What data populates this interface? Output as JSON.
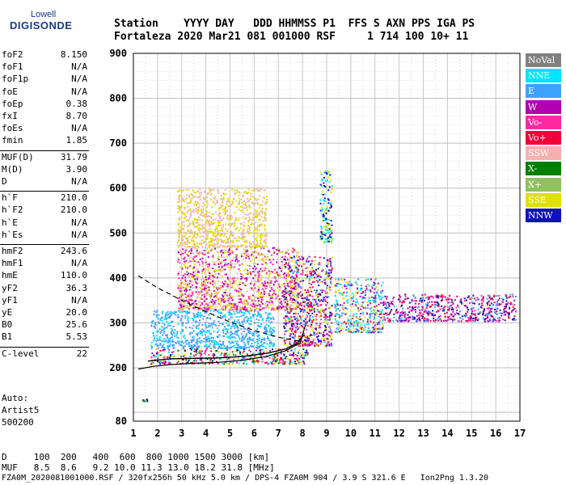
{
  "logo": {
    "line1": "Lowell",
    "line2": "DIGISONDE"
  },
  "header": {
    "row1": "Station    YYYY DAY   DDD HHMMSS P1  FFS S AXN PPS IGA PS",
    "row2": "Fortaleza 2020 Mar21 081 001000 RSF     1 714 100 10+ 11"
  },
  "params": [
    {
      "k": "foF2",
      "v": "8.150"
    },
    {
      "k": "foF1",
      "v": "N/A"
    },
    {
      "k": "foF1p",
      "v": "N/A"
    },
    {
      "k": "foE",
      "v": "N/A"
    },
    {
      "k": "foEp",
      "v": "0.38"
    },
    {
      "k": "fxI",
      "v": "8.70"
    },
    {
      "k": "foEs",
      "v": "N/A"
    },
    {
      "k": "fmin",
      "v": "1.85"
    },
    {
      "k": "MUF(D)",
      "v": "31.79"
    },
    {
      "k": "M(D)",
      "v": "3.90"
    },
    {
      "k": "D",
      "v": "N/A"
    },
    {
      "k": "h`F",
      "v": "210.0"
    },
    {
      "k": "h`F2",
      "v": "210.0"
    },
    {
      "k": "h`E",
      "v": "N/A"
    },
    {
      "k": "h`Es",
      "v": "N/A"
    },
    {
      "k": "hmF2",
      "v": "243.6"
    },
    {
      "k": "hmF1",
      "v": "N/A"
    },
    {
      "k": "hmE",
      "v": "110.0"
    },
    {
      "k": "yF2",
      "v": "36.3"
    },
    {
      "k": "yF1",
      "v": "N/A"
    },
    {
      "k": "yE",
      "v": "20.0"
    },
    {
      "k": "B0",
      "v": "25.6"
    },
    {
      "k": "B1",
      "v": "5.53"
    },
    {
      "k": "C-level",
      "v": "22"
    }
  ],
  "autoscale": {
    "line1": "Auto:",
    "line2": "Artist5",
    "line3": "500200"
  },
  "footer": {
    "row1": "D     100  200   400  600  800 1000 1500 3000 [km]",
    "row2": "MUF   8.5  8.6   9.2 10.0 11.3 13.0 18.2 31.8 [MHz]",
    "row3": "FZA0M_2020081001000.RSF / 320fx256h 50 kHz 5.0 km / DPS-4 FZA0M 904 / 3.9 S 321.6 E   Ion2Png 1.3.20"
  },
  "legend": [
    {
      "label": "NoVal",
      "color": "#808080"
    },
    {
      "label": "NNE",
      "color": "#00e5ff"
    },
    {
      "label": "E",
      "color": "#3ea0ff"
    },
    {
      "label": "W",
      "color": "#b000b0"
    },
    {
      "label": "Vo-",
      "color": "#ff2aa0"
    },
    {
      "label": "Vo+",
      "color": "#f00038"
    },
    {
      "label": "SSW",
      "color": "#f5b0b0"
    },
    {
      "label": "X-",
      "color": "#008000"
    },
    {
      "label": "X+",
      "color": "#90c060"
    },
    {
      "label": "SSE",
      "color": "#e0e000"
    },
    {
      "label": "NNW",
      "color": "#1010c0"
    }
  ],
  "chart_data": {
    "type": "scatter",
    "xlabel": "",
    "ylabel": "",
    "xlim": [
      1,
      17
    ],
    "ylim": [
      80,
      900
    ],
    "xticks": [
      "1",
      "2",
      "3",
      "4",
      "5",
      "6",
      "7",
      "8",
      "9",
      "10",
      "11",
      "12",
      "13",
      "14",
      "15",
      "16",
      "17"
    ],
    "yticks": [
      "80",
      "200",
      "300",
      "400",
      "500",
      "600",
      "700",
      "800",
      "900"
    ],
    "grid": true,
    "profile_curve": {
      "x": [
        1.2,
        1.8,
        2.5,
        3.5,
        4.5,
        5.5,
        6.5,
        7.3,
        7.9,
        8.15
      ],
      "y": [
        197,
        203,
        207,
        210,
        212,
        217,
        225,
        238,
        255,
        300
      ]
    },
    "virtual_height_curve": {
      "x": [
        1.6,
        2.5,
        3.5,
        4.5,
        5.5,
        6.5,
        7.3,
        7.8,
        8.0
      ],
      "y": [
        215,
        220,
        221,
        222,
        225,
        232,
        242,
        255,
        270
      ]
    },
    "dashed_curve": {
      "x": [
        1.2,
        2,
        3,
        4,
        5,
        6,
        7,
        8
      ],
      "y": [
        405,
        378,
        350,
        325,
        302,
        283,
        268,
        258
      ]
    },
    "echo_regions": [
      {
        "x": [
          1.7,
          8.2
        ],
        "y": [
          210,
          245
        ],
        "colors": [
          "#f00038",
          "#ff2aa0",
          "#b000b0",
          "#e0e000",
          "#008000",
          "#1010c0",
          "#00e5ff"
        ]
      },
      {
        "x": [
          1.7,
          6.8
        ],
        "y": [
          245,
          330
        ],
        "colors": [
          "#3ea0ff",
          "#00e5ff",
          "#3ea0ff"
        ]
      },
      {
        "x": [
          2.8,
          7.8
        ],
        "y": [
          330,
          470
        ],
        "colors": [
          "#b000b0",
          "#ff2aa0",
          "#f5b0b0",
          "#e0e000"
        ]
      },
      {
        "x": [
          2.8,
          6.5
        ],
        "y": [
          470,
          600
        ],
        "colors": [
          "#e0e000",
          "#f5b0b0"
        ]
      },
      {
        "x": [
          7.2,
          9.2
        ],
        "y": [
          250,
          450
        ],
        "colors": [
          "#ff2aa0",
          "#1010c0",
          "#b000b0",
          "#3ea0ff",
          "#e0e000",
          "#f00038"
        ]
      },
      {
        "x": [
          9.3,
          11.3
        ],
        "y": [
          280,
          400
        ],
        "colors": [
          "#00e5ff",
          "#3ea0ff",
          "#e0e000",
          "#b000b0"
        ]
      },
      {
        "x": [
          11.3,
          16.8
        ],
        "y": [
          305,
          365
        ],
        "colors": [
          "#f00038",
          "#ff2aa0",
          "#1010c0",
          "#b000b0",
          "#3ea0ff"
        ]
      },
      {
        "x": [
          8.7,
          9.2
        ],
        "y": [
          480,
          640
        ],
        "colors": [
          "#00e5ff",
          "#e0e000",
          "#1010c0"
        ]
      },
      {
        "x": [
          1.35,
          1.55
        ],
        "y": [
          126,
          131
        ],
        "colors": [
          "#1010c0",
          "#008000"
        ]
      }
    ]
  }
}
